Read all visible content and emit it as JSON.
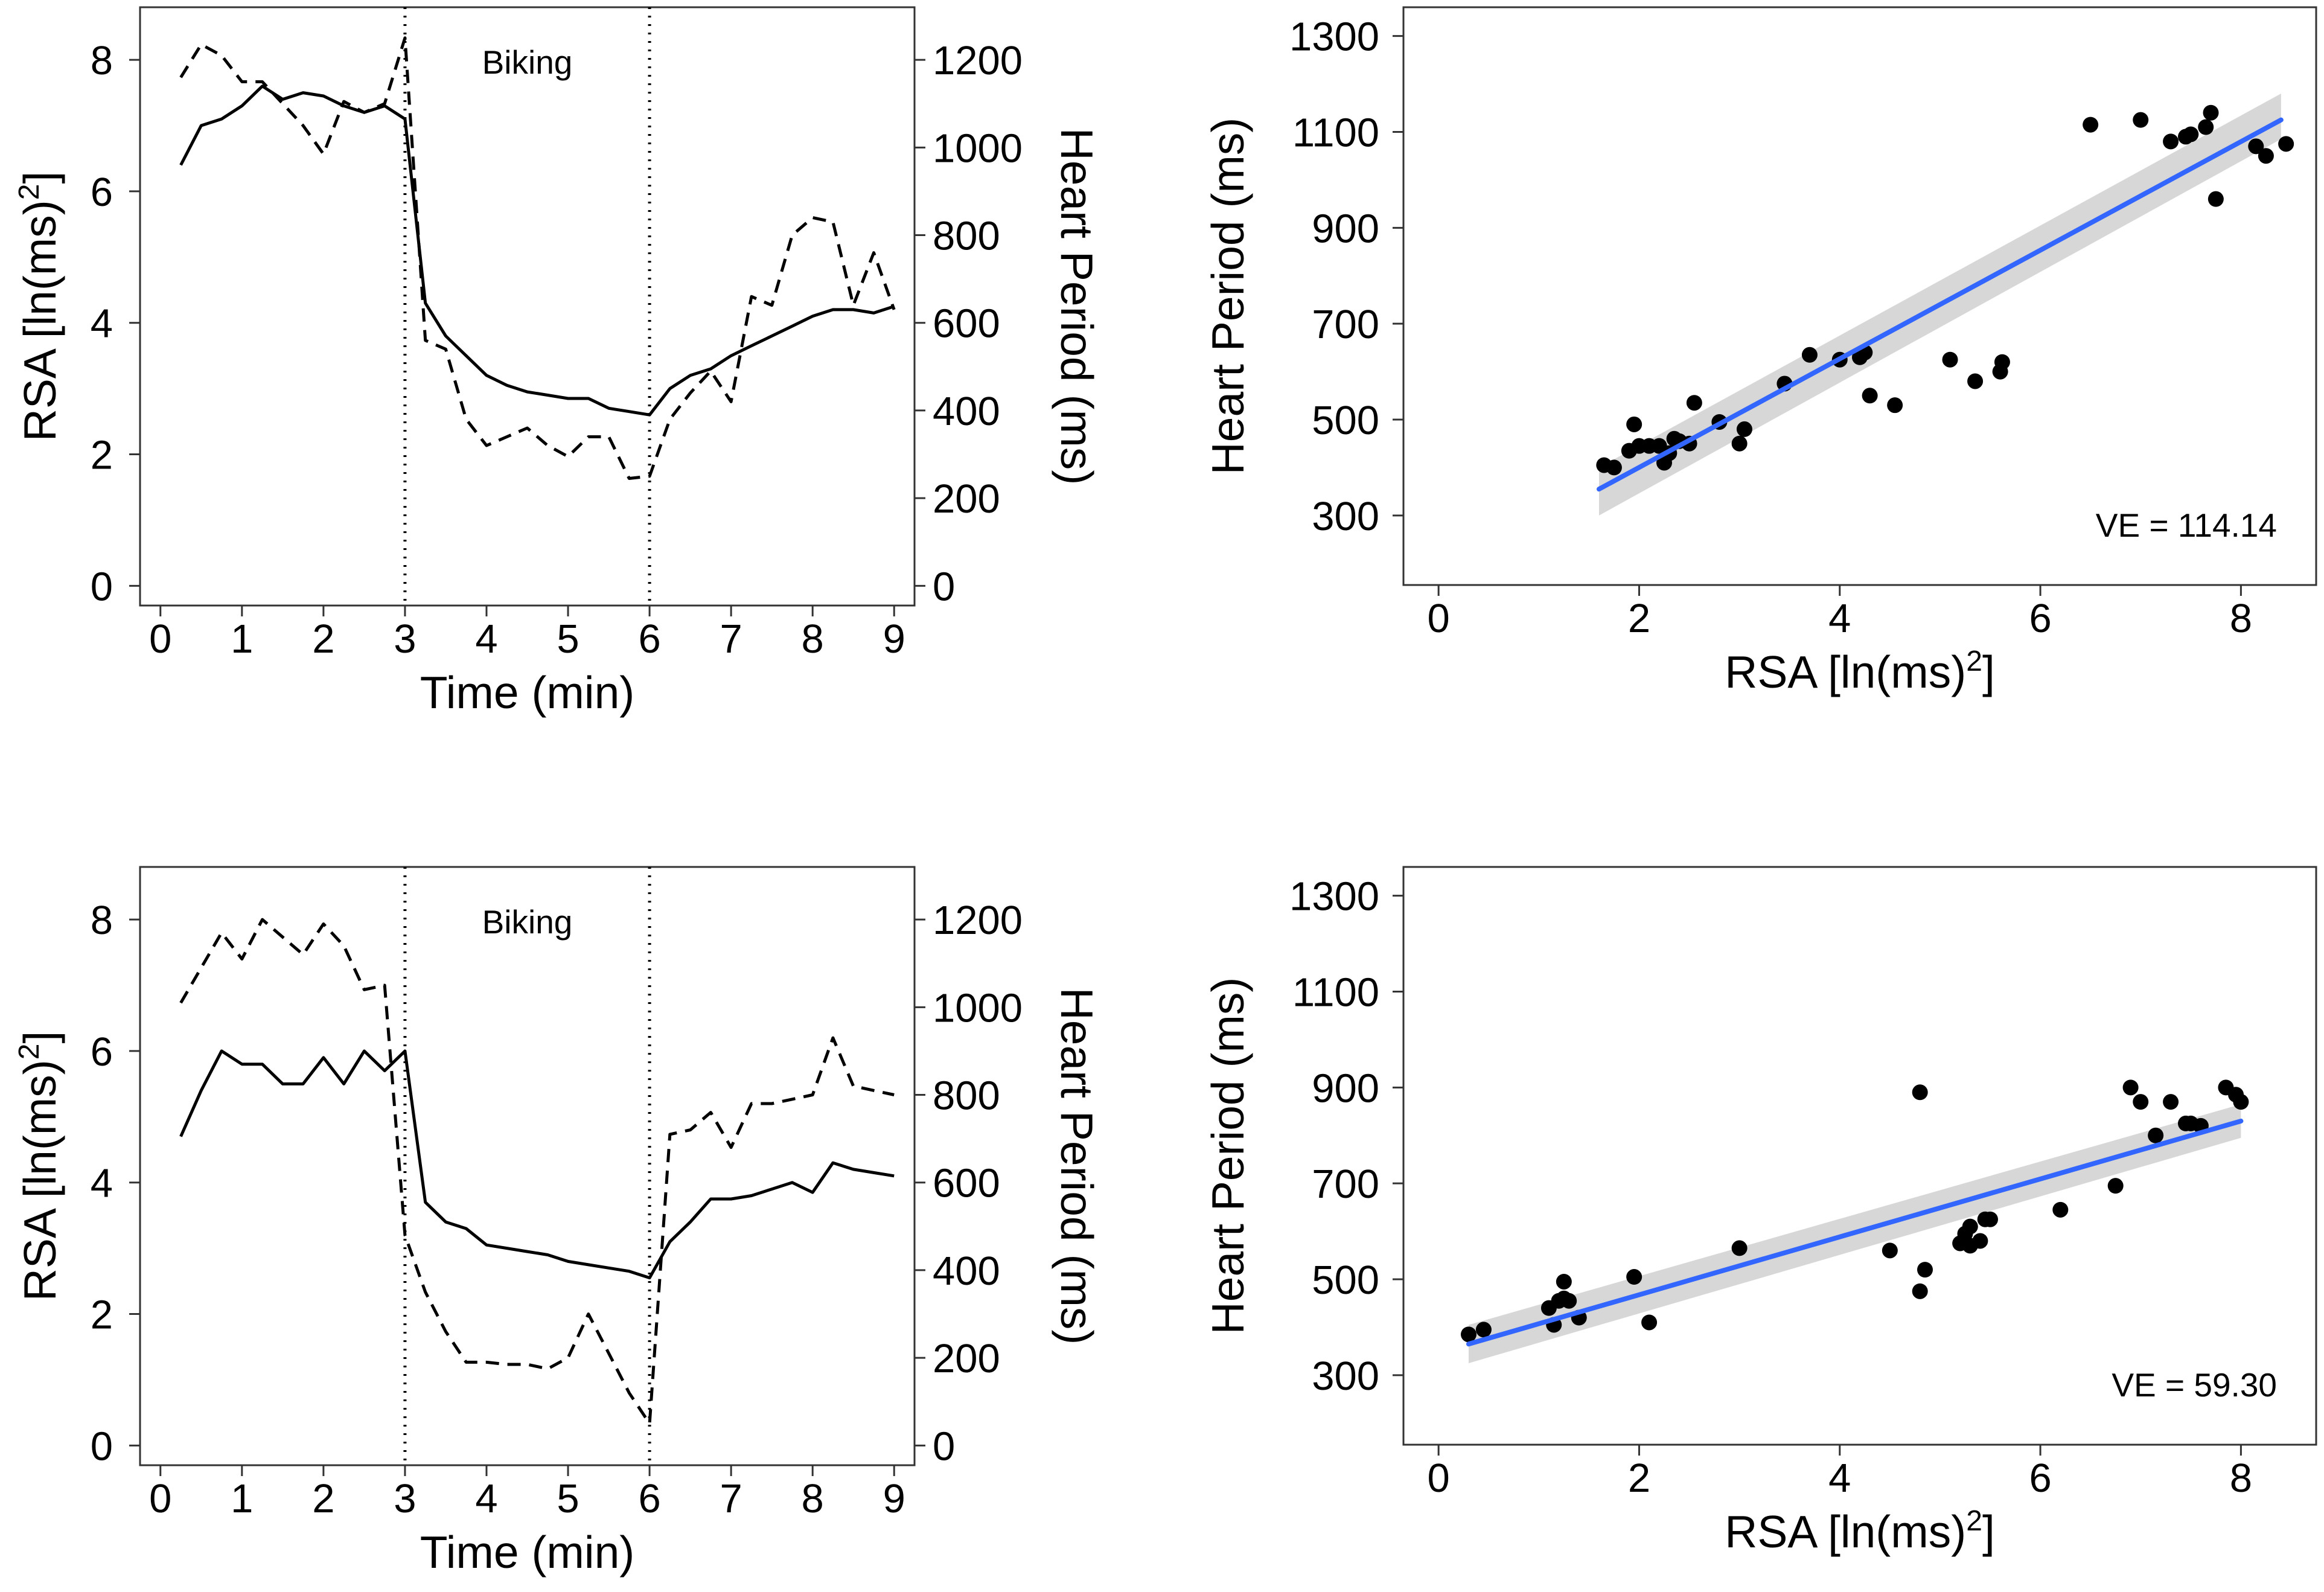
{
  "colors": {
    "axis": "#333333",
    "line": "#000000",
    "fit": "#3366ff",
    "band": "#d0d0d0",
    "point": "#000000"
  },
  "chart_data": [
    {
      "type": "line",
      "title": "",
      "annotation": "Biking",
      "xlabel": "Time (min)",
      "ylabel": "RSA [ln(ms)",
      "ylabel_sup": "2",
      "ylabel_end": "]",
      "y2label": "Heart Period (ms)",
      "xlim": [
        -0.25,
        9.25
      ],
      "ylim": [
        -0.3,
        8.8
      ],
      "y2lim": [
        -45,
        1320
      ],
      "xticks": [
        0,
        1,
        2,
        3,
        4,
        5,
        6,
        7,
        8,
        9
      ],
      "yticks": [
        0,
        2,
        4,
        6,
        8
      ],
      "y2ticks": [
        0,
        200,
        400,
        600,
        800,
        1000,
        1200
      ],
      "vlines": [
        3,
        6
      ],
      "series": [
        {
          "name": "RSA",
          "axis": "left",
          "style": "solid",
          "x": [
            0.25,
            0.5,
            0.75,
            1,
            1.25,
            1.5,
            1.75,
            2,
            2.25,
            2.5,
            2.75,
            3,
            3.25,
            3.5,
            3.75,
            4,
            4.25,
            4.5,
            4.75,
            5,
            5.25,
            5.5,
            5.75,
            6,
            6.25,
            6.5,
            6.75,
            7,
            7.25,
            7.5,
            7.75,
            8,
            8.25,
            8.5,
            8.75,
            9
          ],
          "values": [
            6.4,
            7.0,
            7.1,
            7.3,
            7.6,
            7.4,
            7.5,
            7.45,
            7.3,
            7.2,
            7.3,
            7.1,
            4.3,
            3.8,
            3.5,
            3.2,
            3.05,
            2.95,
            2.9,
            2.85,
            2.85,
            2.7,
            2.65,
            2.6,
            3.0,
            3.2,
            3.3,
            3.5,
            3.65,
            3.8,
            3.95,
            4.1,
            4.2,
            4.2,
            4.15,
            4.25
          ]
        },
        {
          "name": "Heart Period",
          "axis": "right",
          "style": "dashed",
          "x": [
            0.25,
            0.5,
            0.75,
            1,
            1.25,
            1.5,
            1.75,
            2,
            2.25,
            2.5,
            2.75,
            3,
            3.25,
            3.5,
            3.75,
            4,
            4.25,
            4.5,
            4.75,
            5,
            5.25,
            5.5,
            5.75,
            6,
            6.25,
            6.5,
            6.75,
            7,
            7.25,
            7.5,
            7.75,
            8,
            8.25,
            8.5,
            8.75,
            9
          ],
          "values": [
            1160,
            1235,
            1210,
            1150,
            1150,
            1100,
            1050,
            985,
            1105,
            1080,
            1100,
            1250,
            560,
            540,
            380,
            320,
            340,
            360,
            320,
            295,
            340,
            340,
            245,
            250,
            380,
            440,
            490,
            420,
            660,
            640,
            800,
            840,
            830,
            640,
            760,
            630
          ]
        }
      ]
    },
    {
      "type": "scatter",
      "title": "",
      "xlabel": "RSA [ln(ms)",
      "xlabel_sup": "2",
      "xlabel_end": "]",
      "ylabel": "Heart Period (ms)",
      "xlim": [
        -0.35,
        8.75
      ],
      "ylim": [
        155,
        1360
      ],
      "xticks": [
        0,
        2,
        4,
        6,
        8
      ],
      "yticks": [
        300,
        500,
        700,
        900,
        1100,
        1300
      ],
      "annotation": "VE = 114.14",
      "fit": {
        "x0": 1.6,
        "y0": 355,
        "x1": 8.4,
        "y1": 1125,
        "band_lo": [
          300,
          1085
        ],
        "band_hi": [
          400,
          1180
        ]
      },
      "points": [
        [
          1.65,
          405
        ],
        [
          1.75,
          400
        ],
        [
          1.9,
          435
        ],
        [
          1.95,
          490
        ],
        [
          2.0,
          445
        ],
        [
          2.1,
          445
        ],
        [
          2.2,
          445
        ],
        [
          2.25,
          410
        ],
        [
          2.3,
          430
        ],
        [
          2.35,
          460
        ],
        [
          2.4,
          455
        ],
        [
          2.5,
          450
        ],
        [
          2.55,
          535
        ],
        [
          2.8,
          495
        ],
        [
          3.0,
          450
        ],
        [
          3.05,
          480
        ],
        [
          3.45,
          575
        ],
        [
          3.7,
          635
        ],
        [
          4.0,
          625
        ],
        [
          4.2,
          630
        ],
        [
          4.25,
          640
        ],
        [
          4.3,
          550
        ],
        [
          4.55,
          530
        ],
        [
          5.1,
          625
        ],
        [
          5.35,
          580
        ],
        [
          5.6,
          600
        ],
        [
          5.62,
          620
        ],
        [
          6.5,
          1115
        ],
        [
          7.0,
          1125
        ],
        [
          7.3,
          1080
        ],
        [
          7.45,
          1090
        ],
        [
          7.5,
          1095
        ],
        [
          7.65,
          1110
        ],
        [
          7.7,
          1140
        ],
        [
          7.75,
          960
        ],
        [
          8.15,
          1070
        ],
        [
          8.25,
          1050
        ],
        [
          8.45,
          1075
        ]
      ]
    },
    {
      "type": "line",
      "title": "",
      "annotation": "Biking",
      "xlabel": "Time (min)",
      "ylabel": "RSA [ln(ms)",
      "ylabel_sup": "2",
      "ylabel_end": "]",
      "y2label": "Heart Period (ms)",
      "xlim": [
        -0.25,
        9.25
      ],
      "ylim": [
        -0.3,
        8.8
      ],
      "y2lim": [
        -45,
        1320
      ],
      "xticks": [
        0,
        1,
        2,
        3,
        4,
        5,
        6,
        7,
        8,
        9
      ],
      "yticks": [
        0,
        2,
        4,
        6,
        8
      ],
      "y2ticks": [
        0,
        200,
        400,
        600,
        800,
        1000,
        1200
      ],
      "vlines": [
        3,
        6
      ],
      "series": [
        {
          "name": "RSA",
          "axis": "left",
          "style": "solid",
          "x": [
            0.25,
            0.5,
            0.75,
            1,
            1.25,
            1.5,
            1.75,
            2,
            2.25,
            2.5,
            2.75,
            3,
            3.25,
            3.5,
            3.75,
            4,
            4.25,
            4.5,
            4.75,
            5,
            5.25,
            5.5,
            5.75,
            6,
            6.25,
            6.5,
            6.75,
            7,
            7.25,
            7.5,
            7.75,
            8,
            8.25,
            8.5,
            8.75,
            9
          ],
          "values": [
            4.7,
            5.4,
            6.0,
            5.8,
            5.8,
            5.5,
            5.5,
            5.9,
            5.5,
            6.0,
            5.7,
            6.0,
            3.7,
            3.4,
            3.3,
            3.05,
            3.0,
            2.95,
            2.9,
            2.8,
            2.75,
            2.7,
            2.65,
            2.55,
            3.1,
            3.4,
            3.75,
            3.75,
            3.8,
            3.9,
            4.0,
            3.85,
            4.3,
            4.2,
            4.15,
            4.1
          ]
        },
        {
          "name": "Heart Period",
          "axis": "right",
          "style": "dashed",
          "x": [
            0.25,
            0.5,
            0.75,
            1,
            1.25,
            1.5,
            1.75,
            2,
            2.25,
            2.5,
            2.75,
            3,
            3.25,
            3.5,
            3.75,
            4,
            4.25,
            4.5,
            4.75,
            5,
            5.25,
            5.5,
            5.75,
            6,
            6.25,
            6.5,
            6.75,
            7,
            7.25,
            7.5,
            7.75,
            8,
            8.25,
            8.5,
            8.75,
            9
          ],
          "values": [
            1010,
            1090,
            1170,
            1110,
            1200,
            1160,
            1120,
            1190,
            1140,
            1040,
            1050,
            480,
            350,
            260,
            190,
            190,
            185,
            185,
            175,
            200,
            300,
            210,
            120,
            50,
            710,
            720,
            760,
            680,
            780,
            780,
            790,
            800,
            930,
            820,
            810,
            800
          ]
        }
      ]
    },
    {
      "type": "scatter",
      "title": "",
      "xlabel": "RSA [ln(ms)",
      "xlabel_sup": "2",
      "xlabel_end": "]",
      "ylabel": "Heart Period (ms)",
      "xlim": [
        -0.35,
        8.75
      ],
      "ylim": [
        155,
        1360
      ],
      "xticks": [
        0,
        2,
        4,
        6,
        8
      ],
      "yticks": [
        300,
        500,
        700,
        900,
        1100,
        1300
      ],
      "annotation": "VE = 59.30",
      "fit": {
        "x0": 0.3,
        "y0": 365,
        "x1": 8.0,
        "y1": 830,
        "band_lo": [
          325,
          795
        ],
        "band_hi": [
          405,
          865
        ]
      },
      "points": [
        [
          0.3,
          385
        ],
        [
          0.45,
          395
        ],
        [
          1.1,
          440
        ],
        [
          1.15,
          405
        ],
        [
          1.2,
          455
        ],
        [
          1.25,
          460
        ],
        [
          1.25,
          495
        ],
        [
          1.3,
          455
        ],
        [
          1.4,
          420
        ],
        [
          1.95,
          505
        ],
        [
          2.1,
          410
        ],
        [
          3.0,
          565
        ],
        [
          4.5,
          560
        ],
        [
          4.8,
          890
        ],
        [
          4.8,
          475
        ],
        [
          4.85,
          520
        ],
        [
          5.2,
          575
        ],
        [
          5.25,
          595
        ],
        [
          5.3,
          610
        ],
        [
          5.3,
          570
        ],
        [
          5.4,
          580
        ],
        [
          5.45,
          625
        ],
        [
          5.5,
          625
        ],
        [
          6.2,
          645
        ],
        [
          6.75,
          695
        ],
        [
          6.9,
          900
        ],
        [
          7.0,
          870
        ],
        [
          7.15,
          800
        ],
        [
          7.3,
          870
        ],
        [
          7.45,
          825
        ],
        [
          7.5,
          825
        ],
        [
          7.6,
          820
        ],
        [
          7.85,
          900
        ],
        [
          7.95,
          885
        ],
        [
          8.0,
          870
        ]
      ]
    }
  ]
}
